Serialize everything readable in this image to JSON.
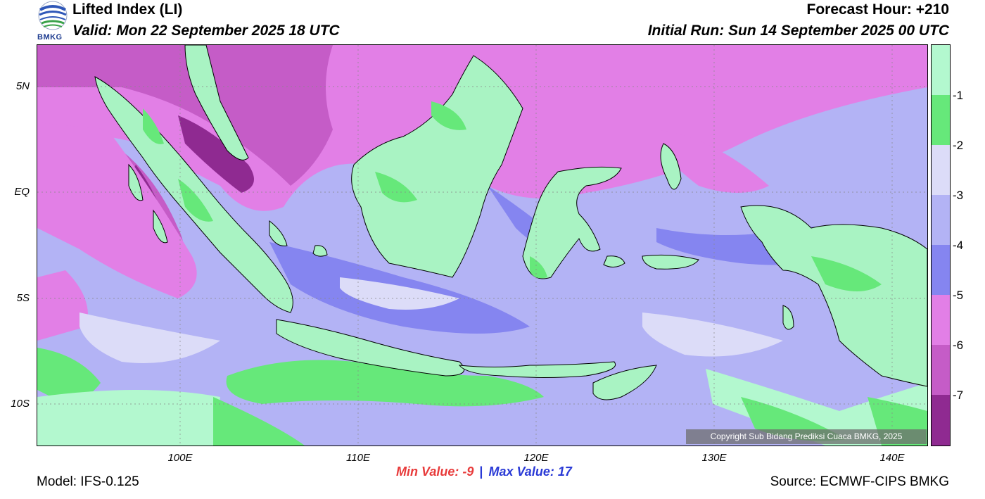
{
  "header": {
    "title": "Lifted Index (LI)",
    "valid": "Valid: Mon 22 September 2025 18 UTC",
    "forecast_hour": "Forecast Hour: +210",
    "initial_run": "Initial Run: Sun 14 September 2025 00 UTC",
    "logo_text": "BMKG"
  },
  "map": {
    "lat_labels": [
      "5N",
      "EQ",
      "5S",
      "10S"
    ],
    "lon_labels": [
      "100E",
      "110E",
      "120E",
      "130E",
      "140E"
    ],
    "extent": {
      "lon": [
        92,
        142
      ],
      "lat": [
        -12,
        7
      ]
    },
    "copyright": "Copyright Sub Bidang Prediksi Cuaca BMKG, 2025",
    "sea_background_color": "#b3b3f5",
    "land_color": "#a9f3c3"
  },
  "colorbar": {
    "labels": [
      "-1",
      "-2",
      "-3",
      "-4",
      "-5",
      "-6",
      "-7"
    ],
    "colors": [
      "#b3f8cf",
      "#66e87a",
      "#dcdcf8",
      "#b3b3f5",
      "#8585f0",
      "#e27fe6",
      "#c55cc7",
      "#8f2a91"
    ]
  },
  "stats": {
    "min_label": "Min Value:",
    "min_value": "-9",
    "separator": "|",
    "max_label": "Max Value:",
    "max_value": "17",
    "min_color": "#e83b3b",
    "max_color": "#2a3ad6"
  },
  "footer": {
    "model": "Model: IFS-0.125",
    "source": "Source: ECMWF-CIPS BMKG"
  }
}
